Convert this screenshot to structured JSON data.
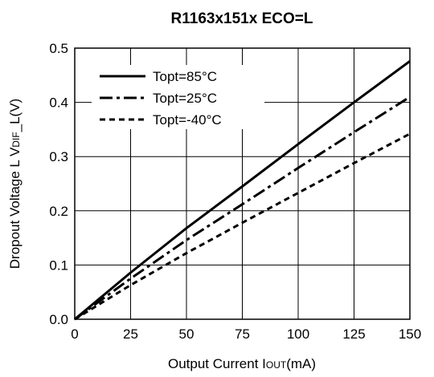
{
  "chart_data": {
    "type": "line",
    "title": "R1163x151x ECO=L",
    "xlabel": {
      "main": "Output Current I",
      "sub": "OUT",
      "unit": "(mA)"
    },
    "ylabel": {
      "pre": "Dropout Voltage L V",
      "sub": "DIF",
      "post": "_L(V)"
    },
    "xlim": [
      0,
      150
    ],
    "ylim": [
      0,
      0.5
    ],
    "x_ticks": [
      "0",
      "25",
      "50",
      "75",
      "100",
      "125",
      "150"
    ],
    "y_ticks": [
      "0.0",
      "0.1",
      "0.2",
      "0.3",
      "0.4",
      "0.5"
    ],
    "grid": true,
    "legend_position": "top-left",
    "series": [
      {
        "name": "Topt=85°C",
        "style": "solid",
        "x": [
          0,
          25,
          50,
          75,
          100,
          125,
          150
        ],
        "y": [
          0,
          0.086,
          0.168,
          0.245,
          0.323,
          0.4,
          0.476
        ]
      },
      {
        "name": "Topt=25°C",
        "style": "dash-dot",
        "x": [
          0,
          25,
          50,
          75,
          100,
          125,
          150
        ],
        "y": [
          0,
          0.075,
          0.146,
          0.212,
          0.279,
          0.345,
          0.41
        ]
      },
      {
        "name": "Topt=-40°C",
        "style": "dashed",
        "x": [
          0,
          25,
          50,
          75,
          100,
          125,
          150
        ],
        "y": [
          0,
          0.063,
          0.122,
          0.178,
          0.233,
          0.288,
          0.342
        ]
      }
    ]
  }
}
